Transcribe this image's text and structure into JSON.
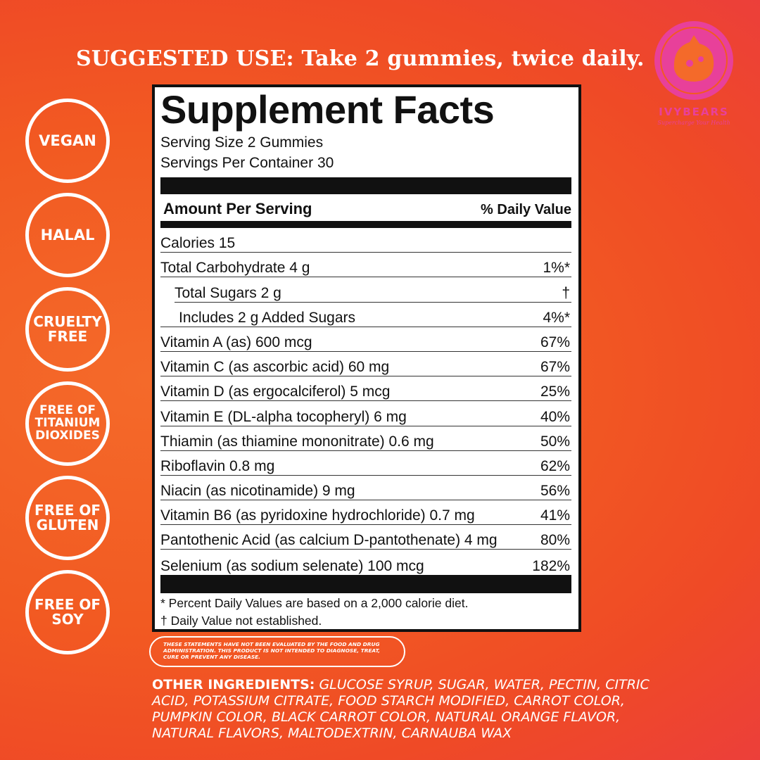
{
  "suggested_use": "SUGGESTED USE: Take 2 gummies, twice daily.",
  "brand": {
    "name": "IVYBEARS",
    "tagline": "Supercharge Your Health",
    "logo_color": "#e8409a",
    "logo_icon": "bear-head-icon"
  },
  "badges": [
    {
      "lines": [
        "VEGAN"
      ]
    },
    {
      "lines": [
        "HALAL"
      ]
    },
    {
      "lines": [
        "CRUELTY",
        "FREE"
      ]
    },
    {
      "lines": [
        "FREE OF",
        "TITANIUM",
        "DIOXIDES"
      ]
    },
    {
      "lines": [
        "FREE OF",
        "GLUTEN"
      ]
    },
    {
      "lines": [
        "FREE OF",
        "SOY"
      ]
    }
  ],
  "facts": {
    "title": "Supplement Facts",
    "serving_size": "Serving Size 2 Gummies",
    "servings_per_container": "Servings Per Container 30",
    "amount_per_serving": "Amount Per Serving",
    "daily_value_header": "% Daily Value",
    "rows": [
      {
        "name": "Calories  15",
        "dv": "",
        "indent": 0
      },
      {
        "name": "Total Carbohydrate 4 g",
        "dv": "1%*",
        "indent": 0
      },
      {
        "name": "Total Sugars 2 g",
        "dv": "†",
        "indent": 1
      },
      {
        "name": "Includes 2 g Added Sugars",
        "dv": "4%*",
        "indent": 2
      },
      {
        "name": "Vitamin A (as) 600 mcg",
        "dv": "67%",
        "indent": 0
      },
      {
        "name": "Vitamin C (as ascorbic acid) 60 mg",
        "dv": "67%",
        "indent": 0
      },
      {
        "name": "Vitamin D (as ergocalciferol) 5 mcg",
        "dv": "25%",
        "indent": 0
      },
      {
        "name": "Vitamin E (DL-alpha tocopheryl) 6 mg",
        "dv": "40%",
        "indent": 0
      },
      {
        "name": "Thiamin (as thiamine mononitrate) 0.6 mg",
        "dv": "50%",
        "indent": 0
      },
      {
        "name": "Riboflavin 0.8 mg",
        "dv": "62%",
        "indent": 0
      },
      {
        "name": "Niacin (as nicotinamide) 9 mg",
        "dv": "56%",
        "indent": 0
      },
      {
        "name": "Vitamin B6 (as pyridoxine hydrochloride) 0.7 mg",
        "dv": "41%",
        "indent": 0
      },
      {
        "name": "Pantothenic Acid (as calcium D-pantothenate) 4 mg",
        "dv": "80%",
        "indent": 0
      },
      {
        "name": "Selenium (as sodium selenate) 100 mcg",
        "dv": "182%",
        "indent": 0
      }
    ],
    "footnote_1": "* Percent Daily Values are based on a 2,000 calorie diet.",
    "footnote_2": "† Daily Value not established."
  },
  "disclaimer": "THESE STATEMENTS HAVE NOT BEEN EVALUATED BY THE FOOD AND DRUG ADMINISTRATION. THIS PRODUCT IS NOT INTENDED TO DIAGNOSE, TREAT, CURE OR PREVENT ANY DISEASE.",
  "ingredients": {
    "label": "OTHER INGREDIENTS:",
    "text": "GLUCOSE SYRUP, SUGAR, WATER, PECTIN, CITRIC ACID, POTASSIUM CITRATE, FOOD STARCH MODIFIED, CARROT COLOR, PUMPKIN COLOR, BLACK CARROT COLOR, NATURAL ORANGE FLAVOR, NATURAL FLAVORS, MALTODEXTRIN, CARNAUBA WAX"
  }
}
